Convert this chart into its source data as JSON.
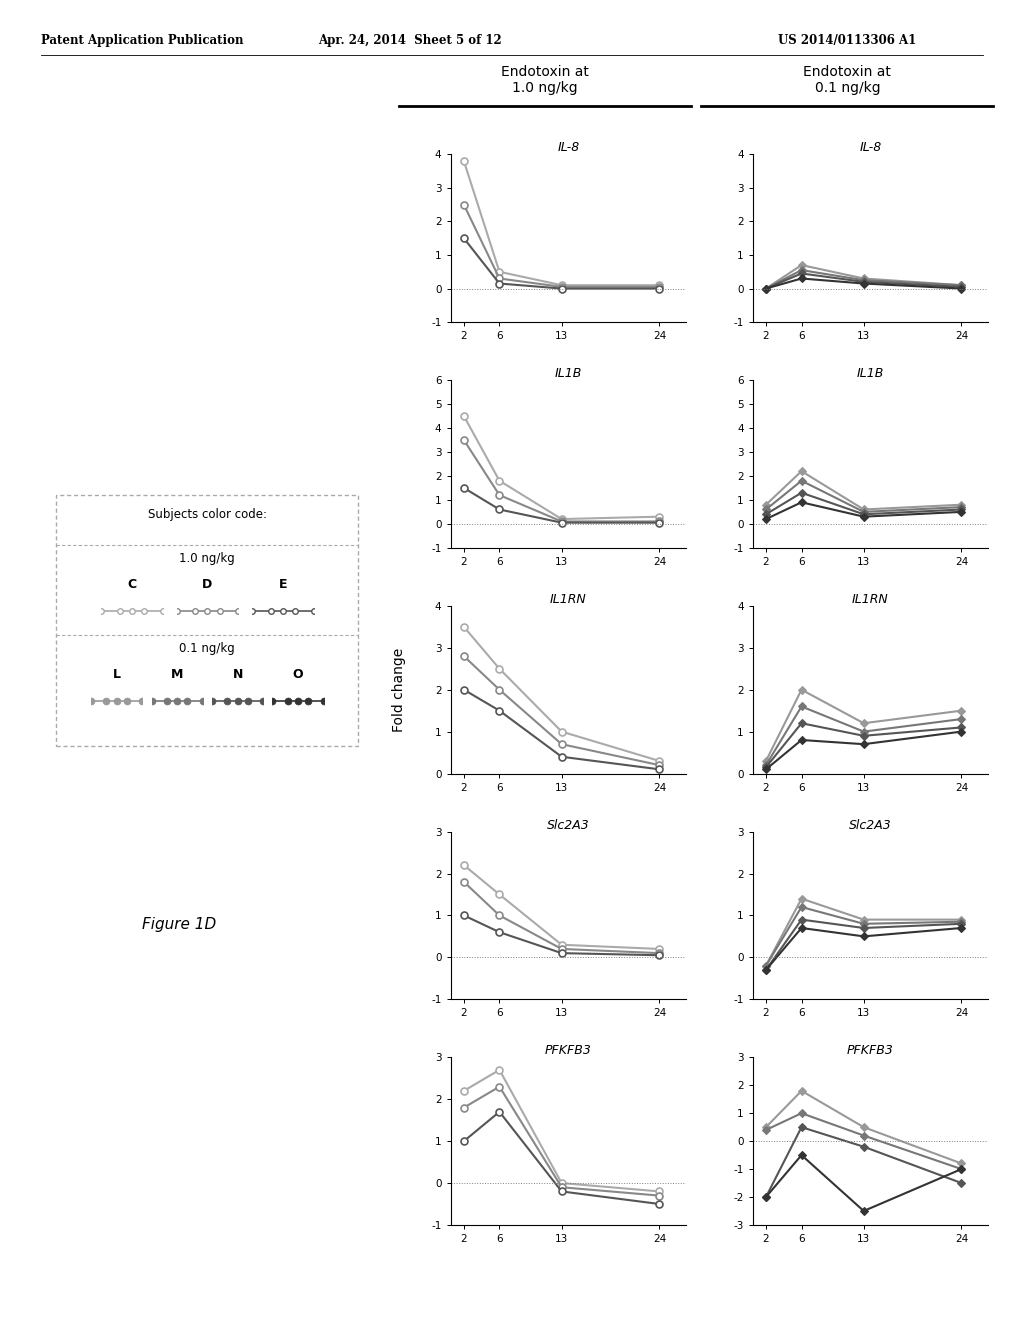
{
  "header_left": "Patent Application Publication",
  "header_mid": "Apr. 24, 2014  Sheet 5 of 12",
  "header_right": "US 2014/0113306 A1",
  "col_headers": [
    "Endotoxin at\n1.0 ng/kg",
    "Endotoxin at\n0.1 ng/kg"
  ],
  "gene_labels": [
    "IL-8",
    "IL1B",
    "IL1RN",
    "Slc2A3",
    "PFKFB3"
  ],
  "x_ticks": [
    2,
    6,
    13,
    24
  ],
  "ylabel": "Fold change",
  "figure_label": "Figure 1D",
  "legend_title": "Subjects color code:",
  "group1_label": "1.0 ng/kg",
  "group1_subjects": [
    "C",
    "D",
    "E"
  ],
  "group2_label": "0.1 ng/kg",
  "group2_subjects": [
    "L",
    "M",
    "N",
    "O"
  ],
  "ylims": {
    "IL8_high": [
      -1,
      4
    ],
    "IL8_low": [
      -1,
      4
    ],
    "IL1B_high": [
      -1,
      6
    ],
    "IL1B_low": [
      -1,
      6
    ],
    "IL1RN_high": [
      0,
      4
    ],
    "IL1RN_low": [
      0,
      4
    ],
    "Slc2A3_high": [
      -1,
      3
    ],
    "Slc2A3_low": [
      -1,
      3
    ],
    "PFKFB3_high": [
      -1,
      3
    ],
    "PFKFB3_low": [
      -3,
      3
    ]
  },
  "yticks": {
    "IL8_high": [
      -1,
      0,
      1,
      2,
      3,
      4
    ],
    "IL8_low": [
      -1,
      0,
      1,
      2,
      3,
      4
    ],
    "IL1B_high": [
      -1,
      0,
      1,
      2,
      3,
      4,
      5,
      6
    ],
    "IL1B_low": [
      -1,
      0,
      1,
      2,
      3,
      4,
      5,
      6
    ],
    "IL1RN_high": [
      0,
      1,
      2,
      3,
      4
    ],
    "IL1RN_low": [
      0,
      1,
      2,
      3,
      4
    ],
    "Slc2A3_high": [
      -1,
      0,
      1,
      2,
      3
    ],
    "Slc2A3_low": [
      -1,
      0,
      1,
      2,
      3
    ],
    "PFKFB3_high": [
      -1,
      0,
      1,
      2,
      3
    ],
    "PFKFB3_low": [
      -3,
      -2,
      -1,
      0,
      1,
      2,
      3
    ]
  },
  "data": {
    "IL8_high": {
      "C": [
        3.8,
        0.5,
        0.1,
        0.1
      ],
      "D": [
        2.5,
        0.3,
        0.05,
        0.05
      ],
      "E": [
        1.5,
        0.15,
        0.0,
        0.0
      ]
    },
    "IL8_low": {
      "L": [
        0.0,
        0.7,
        0.3,
        0.1
      ],
      "M": [
        0.0,
        0.55,
        0.25,
        0.1
      ],
      "N": [
        0.0,
        0.45,
        0.2,
        0.05
      ],
      "O": [
        0.0,
        0.3,
        0.15,
        0.0
      ]
    },
    "IL1B_high": {
      "C": [
        4.5,
        1.8,
        0.2,
        0.3
      ],
      "D": [
        3.5,
        1.2,
        0.1,
        0.1
      ],
      "E": [
        1.5,
        0.6,
        0.05,
        0.05
      ]
    },
    "IL1B_low": {
      "L": [
        0.8,
        2.2,
        0.6,
        0.8
      ],
      "M": [
        0.6,
        1.8,
        0.5,
        0.7
      ],
      "N": [
        0.4,
        1.3,
        0.4,
        0.6
      ],
      "O": [
        0.2,
        0.9,
        0.3,
        0.5
      ]
    },
    "IL1RN_high": {
      "C": [
        3.5,
        2.5,
        1.0,
        0.3
      ],
      "D": [
        2.8,
        2.0,
        0.7,
        0.2
      ],
      "E": [
        2.0,
        1.5,
        0.4,
        0.1
      ]
    },
    "IL1RN_low": {
      "L": [
        0.3,
        2.0,
        1.2,
        1.5
      ],
      "M": [
        0.2,
        1.6,
        1.0,
        1.3
      ],
      "N": [
        0.15,
        1.2,
        0.9,
        1.1
      ],
      "O": [
        0.1,
        0.8,
        0.7,
        1.0
      ]
    },
    "Slc2A3_high": {
      "C": [
        2.2,
        1.5,
        0.3,
        0.2
      ],
      "D": [
        1.8,
        1.0,
        0.2,
        0.1
      ],
      "E": [
        1.0,
        0.6,
        0.1,
        0.05
      ]
    },
    "Slc2A3_low": {
      "L": [
        -0.2,
        1.4,
        0.9,
        0.9
      ],
      "M": [
        -0.2,
        1.2,
        0.8,
        0.85
      ],
      "N": [
        -0.3,
        0.9,
        0.7,
        0.8
      ],
      "O": [
        -0.3,
        0.7,
        0.5,
        0.7
      ]
    },
    "PFKFB3_high": {
      "C": [
        2.2,
        2.7,
        0.0,
        -0.2
      ],
      "D": [
        1.8,
        2.3,
        -0.1,
        -0.3
      ],
      "E": [
        1.0,
        1.7,
        -0.2,
        -0.5
      ]
    },
    "PFKFB3_low": {
      "L": [
        0.5,
        1.8,
        0.5,
        -0.8
      ],
      "M": [
        0.4,
        1.0,
        0.2,
        -1.0
      ],
      "N": [
        -2.0,
        0.5,
        -0.2,
        -1.5
      ],
      "O": [
        -2.0,
        -0.5,
        -2.5,
        -1.0
      ]
    }
  },
  "high_colors": [
    "#aaaaaa",
    "#888888",
    "#555555"
  ],
  "low_colors": [
    "#999999",
    "#777777",
    "#555555",
    "#333333"
  ]
}
